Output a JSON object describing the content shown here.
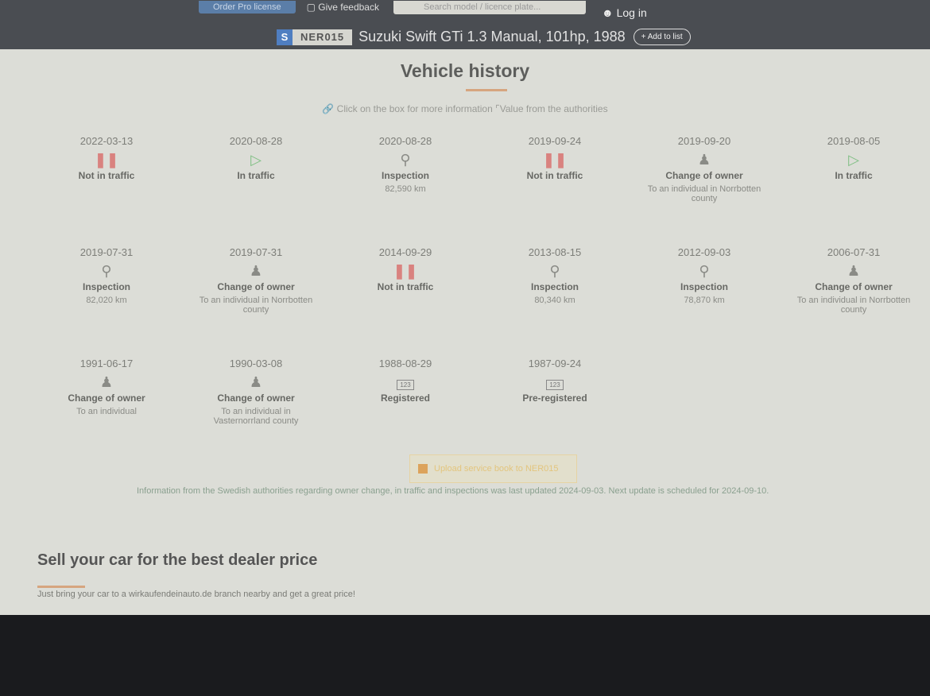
{
  "nav": {
    "pro": "Order Pro license",
    "feedback": "Give feedback",
    "search_placeholder": "Search model / licence plate...",
    "login": "Log in"
  },
  "vehicle": {
    "country": "S",
    "plate": "NER015",
    "title": "Suzuki Swift GTi 1.3 Manual, 101hp, 1988",
    "add": "+ Add to list"
  },
  "history": {
    "title": "Vehicle history",
    "hint": "Click on the box for more information",
    "authority": "Value from the authorities",
    "events": [
      {
        "date": "2022-03-13",
        "icon": "pause-icon",
        "type": "Not in traffic",
        "detail": ""
      },
      {
        "date": "2020-08-28",
        "icon": "play-icon",
        "type": "In traffic",
        "detail": ""
      },
      {
        "date": "2020-08-28",
        "icon": "search-icon",
        "type": "Inspection",
        "detail": "82,590 km"
      },
      {
        "date": "2019-09-24",
        "icon": "pause-icon",
        "type": "Not in traffic",
        "detail": ""
      },
      {
        "date": "2019-09-20",
        "icon": "owner-icon",
        "type": "Change of owner",
        "detail": "To an individual in Norrbotten county"
      },
      {
        "date": "2019-08-05",
        "icon": "play-icon",
        "type": "In traffic",
        "detail": ""
      },
      {
        "date": "2019-07-31",
        "icon": "search-icon",
        "type": "Inspection",
        "detail": "82,020 km"
      },
      {
        "date": "2019-07-31",
        "icon": "owner-icon",
        "type": "Change of owner",
        "detail": "To an individual in Norrbotten county"
      },
      {
        "date": "2014-09-29",
        "icon": "pause-icon",
        "type": "Not in traffic",
        "detail": ""
      },
      {
        "date": "2013-08-15",
        "icon": "search-icon",
        "type": "Inspection",
        "detail": "80,340 km"
      },
      {
        "date": "2012-09-03",
        "icon": "search-icon",
        "type": "Inspection",
        "detail": "78,870 km"
      },
      {
        "date": "2006-07-31",
        "icon": "owner-icon",
        "type": "Change of owner",
        "detail": "To an individual in Norrbotten county"
      },
      {
        "date": "1991-06-17",
        "icon": "owner-icon",
        "type": "Change of owner",
        "detail": "To an individual"
      },
      {
        "date": "1990-03-08",
        "icon": "owner-icon",
        "type": "Change of owner",
        "detail": "To an individual in Vasternorrland county"
      },
      {
        "date": "1988-08-29",
        "icon": "plate-icon",
        "type": "Registered",
        "detail": ""
      },
      {
        "date": "1987-09-24",
        "icon": "plate-icon",
        "type": "Pre-registered",
        "detail": ""
      }
    ],
    "plate_icon_text": "123",
    "upload": "Upload service book to NER015",
    "info": "Information from the Swedish authorities regarding owner change, in traffic and inspections was last updated 2024-09-03. Next update is scheduled for 2024-09-10."
  },
  "sell": {
    "title": "Sell your car for the best dealer price",
    "text": "Just bring your car to a wirkaufendeinauto.de branch nearby and get a great price!"
  }
}
